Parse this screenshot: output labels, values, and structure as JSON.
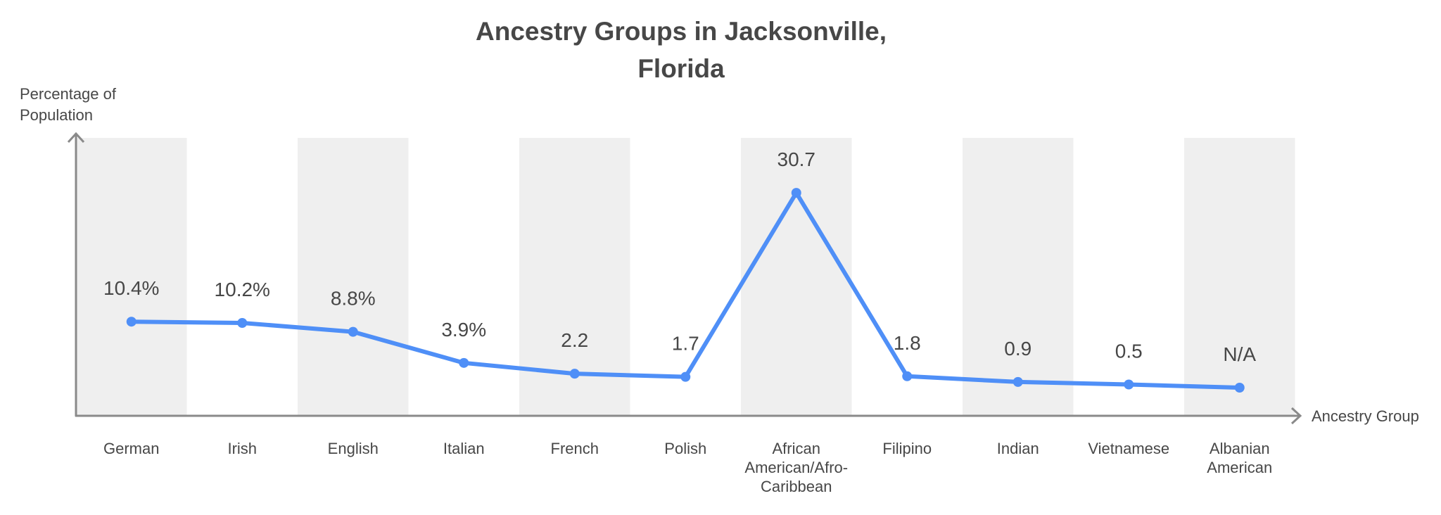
{
  "chart_data": {
    "type": "line",
    "title": [
      "Ancestry Groups in Jacksonville,",
      "Florida"
    ],
    "xlabel": "Ancestry Group",
    "ylabel": [
      "Percentage of",
      "Population"
    ],
    "categories": [
      [
        "German"
      ],
      [
        "Irish"
      ],
      [
        "English"
      ],
      [
        "Italian"
      ],
      [
        "French"
      ],
      [
        "Polish"
      ],
      [
        "African",
        "American/Afro-",
        "Caribbean"
      ],
      [
        "Filipino"
      ],
      [
        "Indian"
      ],
      [
        "Vietnamese"
      ],
      [
        "Albanian",
        "American"
      ]
    ],
    "values": [
      10.4,
      10.2,
      8.8,
      3.9,
      2.2,
      1.7,
      30.7,
      1.8,
      0.9,
      0.5,
      null
    ],
    "data_labels": [
      "10.4%",
      "10.2%",
      "8.8%",
      "3.9%",
      "2.2",
      "1.7",
      "30.7",
      "1.8",
      "0.9",
      "0.5",
      "N/A"
    ],
    "grid": false,
    "alternating_bands": true,
    "colors": {
      "line": "#4F8FF7",
      "band": "#EFEFEF",
      "axis": "#8A8A8A",
      "text": "#474747"
    }
  }
}
